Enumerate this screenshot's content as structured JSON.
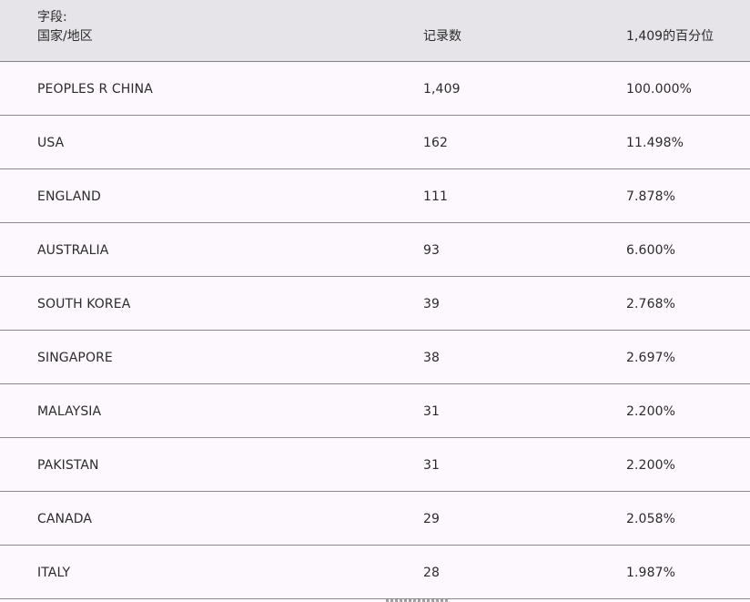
{
  "header": {
    "field_label": "字段:",
    "field_name": "国家/地区",
    "count_label": "记录数",
    "percent_label": "1,409的百分位"
  },
  "rows": [
    {
      "country": "PEOPLES R CHINA",
      "count": "1,409",
      "percent": "100.000%"
    },
    {
      "country": "USA",
      "count": "162",
      "percent": "11.498%"
    },
    {
      "country": "ENGLAND",
      "count": "111",
      "percent": "7.878%"
    },
    {
      "country": "AUSTRALIA",
      "count": "93",
      "percent": "6.600%"
    },
    {
      "country": "SOUTH KOREA",
      "count": "39",
      "percent": "2.768%"
    },
    {
      "country": "SINGAPORE",
      "count": "38",
      "percent": "2.697%"
    },
    {
      "country": "MALAYSIA",
      "count": "31",
      "percent": "2.200%"
    },
    {
      "country": "PAKISTAN",
      "count": "31",
      "percent": "2.200%"
    },
    {
      "country": "CANADA",
      "count": "29",
      "percent": "2.058%"
    },
    {
      "country": "ITALY",
      "count": "28",
      "percent": "1.987%"
    }
  ]
}
